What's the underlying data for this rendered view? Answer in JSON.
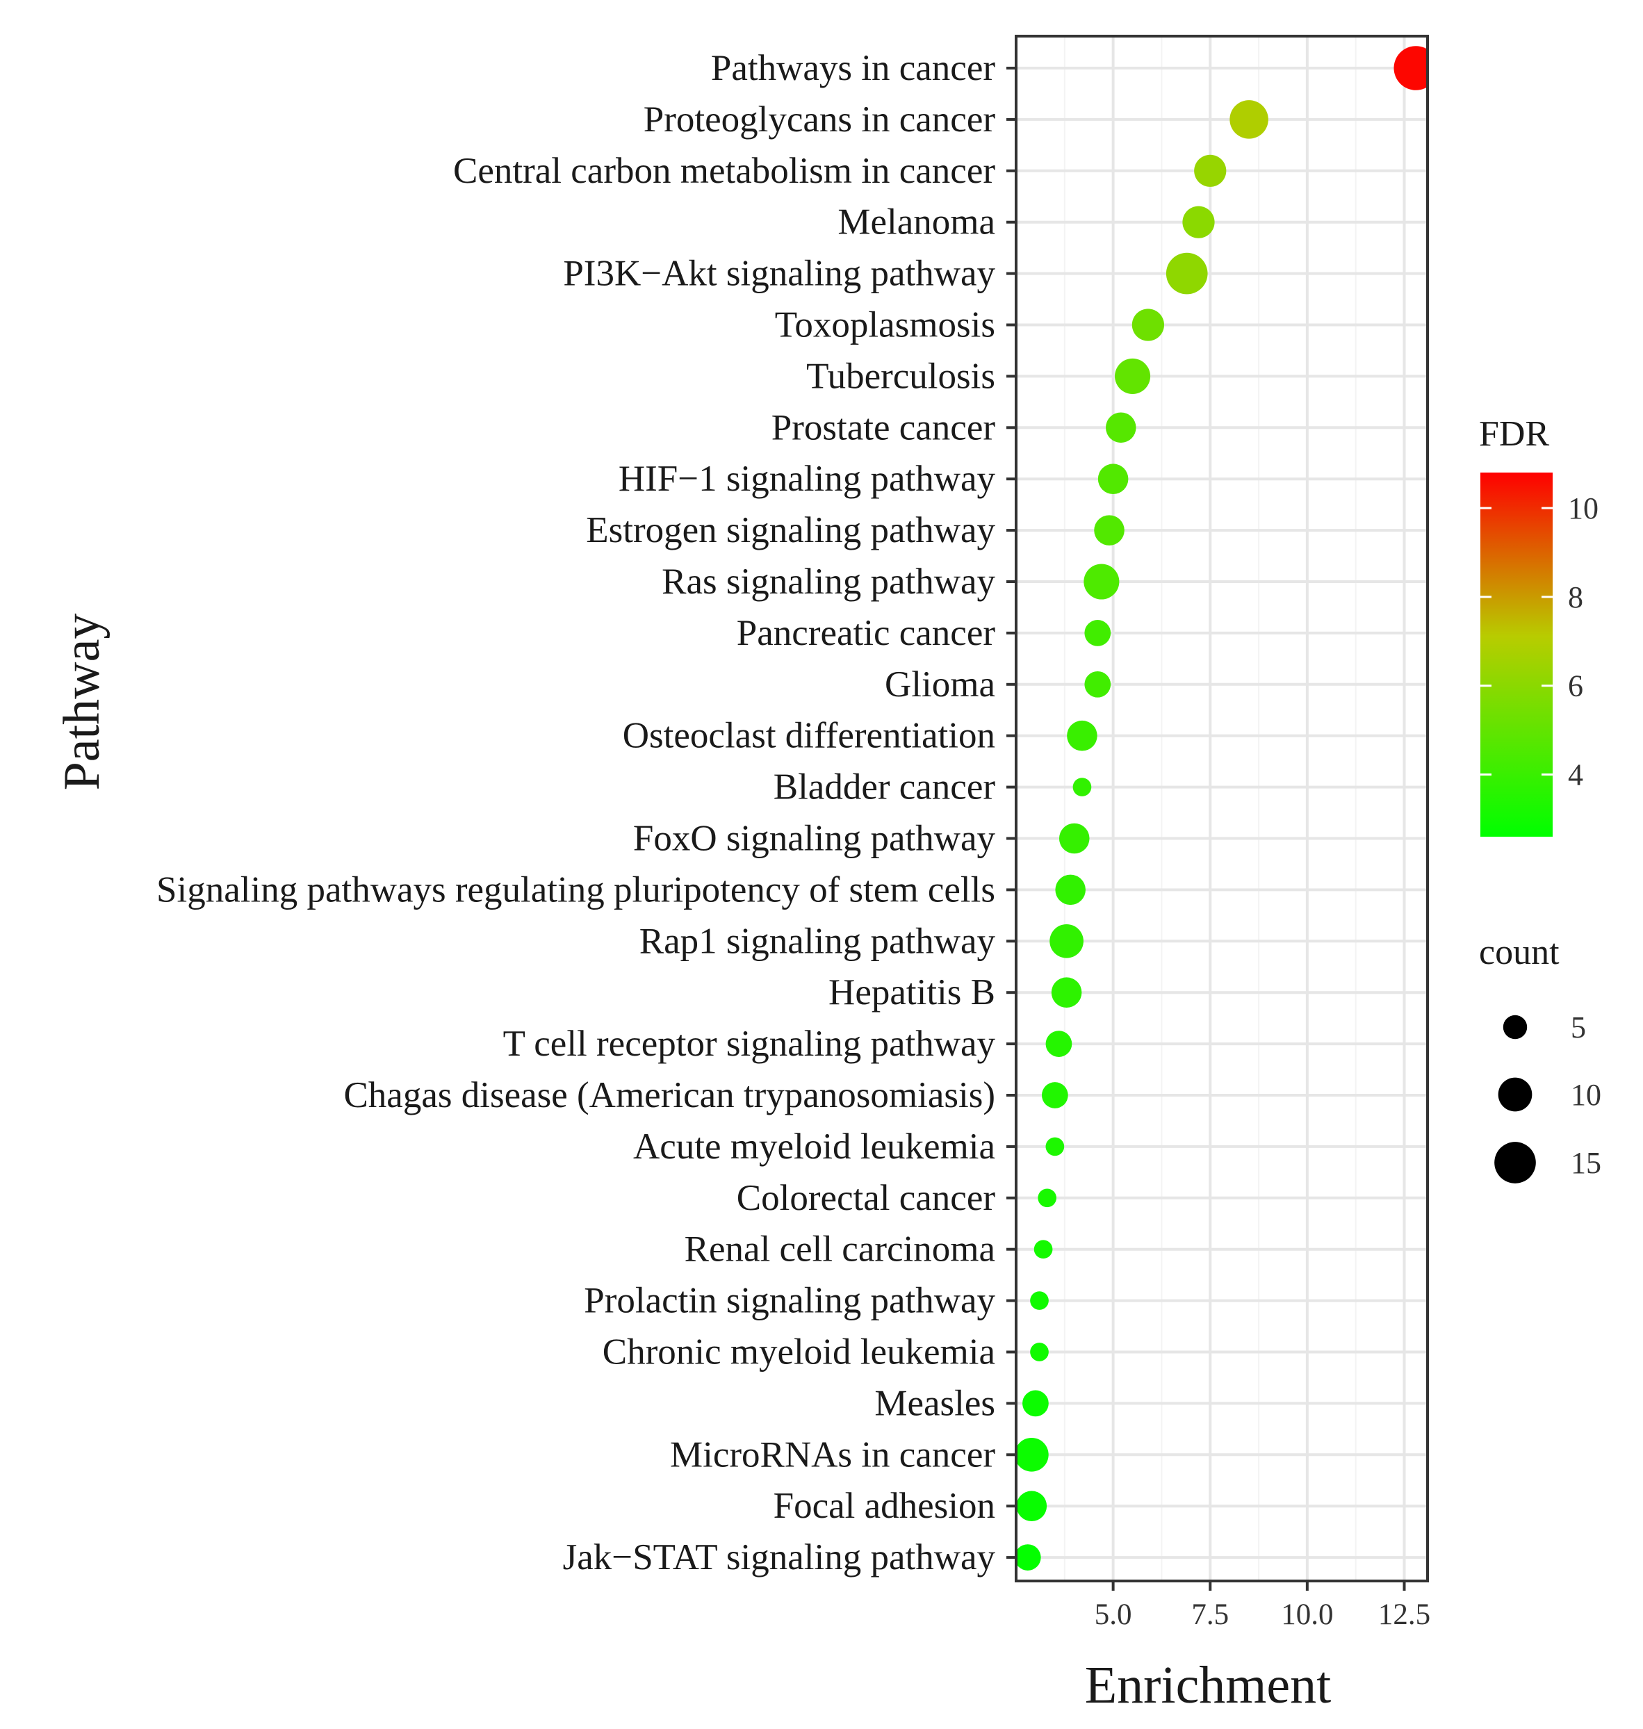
{
  "chart_data": {
    "type": "scatter",
    "xlabel": "Enrichment",
    "ylabel": "Pathway",
    "xlim": [
      2.5,
      13.1
    ],
    "x_ticks": [
      "5.0",
      "7.5",
      "10.0",
      "12.5"
    ],
    "x_tick_values": [
      5.0,
      7.5,
      10.0,
      12.5
    ],
    "grid": true,
    "points": [
      {
        "pathway": "Pathways in cancer",
        "enrichment": 12.8,
        "count": 17,
        "fdr": 10.7
      },
      {
        "pathway": "Proteoglycans in cancer",
        "enrichment": 8.5,
        "count": 13,
        "fdr": 6.9
      },
      {
        "pathway": "Central carbon metabolism in cancer",
        "enrichment": 7.5,
        "count": 9,
        "fdr": 6.3
      },
      {
        "pathway": "Melanoma",
        "enrichment": 7.2,
        "count": 9,
        "fdr": 6.0
      },
      {
        "pathway": "PI3K−Akt signaling pathway",
        "enrichment": 6.9,
        "count": 15,
        "fdr": 6.1
      },
      {
        "pathway": "Toxoplasmosis",
        "enrichment": 5.9,
        "count": 9,
        "fdr": 5.3
      },
      {
        "pathway": "Tuberculosis",
        "enrichment": 5.5,
        "count": 11,
        "fdr": 5.0
      },
      {
        "pathway": "Prostate cancer",
        "enrichment": 5.2,
        "count": 8,
        "fdr": 4.7
      },
      {
        "pathway": "HIF−1 signaling pathway",
        "enrichment": 5.0,
        "count": 8,
        "fdr": 4.6
      },
      {
        "pathway": "Estrogen signaling pathway",
        "enrichment": 4.9,
        "count": 8,
        "fdr": 4.6
      },
      {
        "pathway": "Ras signaling pathway",
        "enrichment": 4.7,
        "count": 11,
        "fdr": 4.5
      },
      {
        "pathway": "Pancreatic cancer",
        "enrichment": 4.6,
        "count": 6,
        "fdr": 4.2
      },
      {
        "pathway": "Glioma",
        "enrichment": 4.6,
        "count": 6,
        "fdr": 4.2
      },
      {
        "pathway": "Osteoclast differentiation",
        "enrichment": 4.2,
        "count": 8,
        "fdr": 4.0
      },
      {
        "pathway": "Bladder cancer",
        "enrichment": 4.2,
        "count": 3,
        "fdr": 3.8
      },
      {
        "pathway": "FoxO signaling pathway",
        "enrichment": 4.0,
        "count": 8,
        "fdr": 3.9
      },
      {
        "pathway": "Signaling pathways regulating pluripotency of stem cells",
        "enrichment": 3.9,
        "count": 8,
        "fdr": 3.8
      },
      {
        "pathway": "Rap1 signaling pathway",
        "enrichment": 3.8,
        "count": 10,
        "fdr": 3.8
      },
      {
        "pathway": "Hepatitis B",
        "enrichment": 3.8,
        "count": 8,
        "fdr": 3.7
      },
      {
        "pathway": "T cell receptor signaling pathway",
        "enrichment": 3.6,
        "count": 6,
        "fdr": 3.5
      },
      {
        "pathway": "Chagas disease (American trypanosomiasis)",
        "enrichment": 3.5,
        "count": 6,
        "fdr": 3.4
      },
      {
        "pathway": "Acute myeloid leukemia",
        "enrichment": 3.5,
        "count": 3,
        "fdr": 3.3
      },
      {
        "pathway": "Colorectal cancer",
        "enrichment": 3.3,
        "count": 3,
        "fdr": 3.2
      },
      {
        "pathway": "Renal cell carcinoma",
        "enrichment": 3.2,
        "count": 3,
        "fdr": 3.1
      },
      {
        "pathway": "Prolactin signaling pathway",
        "enrichment": 3.1,
        "count": 3,
        "fdr": 3.0
      },
      {
        "pathway": "Chronic myeloid leukemia",
        "enrichment": 3.1,
        "count": 3,
        "fdr": 3.0
      },
      {
        "pathway": "Measles",
        "enrichment": 3.0,
        "count": 6,
        "fdr": 2.9
      },
      {
        "pathway": "MicroRNAs in cancer",
        "enrichment": 2.9,
        "count": 10,
        "fdr": 2.9
      },
      {
        "pathway": "Focal adhesion",
        "enrichment": 2.9,
        "count": 8,
        "fdr": 2.8
      },
      {
        "pathway": "Jak−STAT signaling pathway",
        "enrichment": 2.8,
        "count": 6,
        "fdr": 2.7
      }
    ],
    "color_legend": {
      "title": "FDR",
      "range": [
        2.6,
        10.8
      ],
      "ticks": [
        "10",
        "8",
        "6",
        "4"
      ],
      "tick_values": [
        10,
        8,
        6,
        4
      ],
      "colors": [
        "#00ff00",
        "#b8cc00",
        "#ff0000"
      ]
    },
    "size_legend": {
      "title": "count",
      "labels": [
        "5",
        "10",
        "15"
      ],
      "values": [
        5,
        10,
        15
      ]
    },
    "legend_position": "right"
  }
}
